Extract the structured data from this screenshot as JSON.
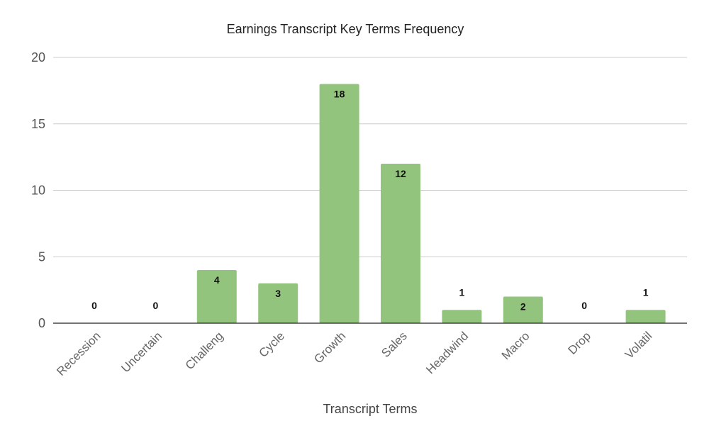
{
  "chart_data": {
    "type": "bar",
    "title": "Earnings Transcript Key Terms Frequency",
    "xlabel": "Transcript Terms",
    "ylabel": "",
    "categories": [
      "Recession",
      "Uncertain",
      "Challeng",
      "Cycle",
      "Growth",
      "Sales",
      "Headwind",
      "Macro",
      "Drop",
      "Volatil"
    ],
    "values": [
      0,
      0,
      4,
      3,
      18,
      12,
      1,
      2,
      0,
      1
    ],
    "ylim": [
      0,
      20
    ],
    "yticks": [
      0,
      5,
      10,
      15,
      20
    ],
    "grid": true,
    "data_labels": true,
    "colors": {
      "bar": "#93c47d"
    }
  }
}
